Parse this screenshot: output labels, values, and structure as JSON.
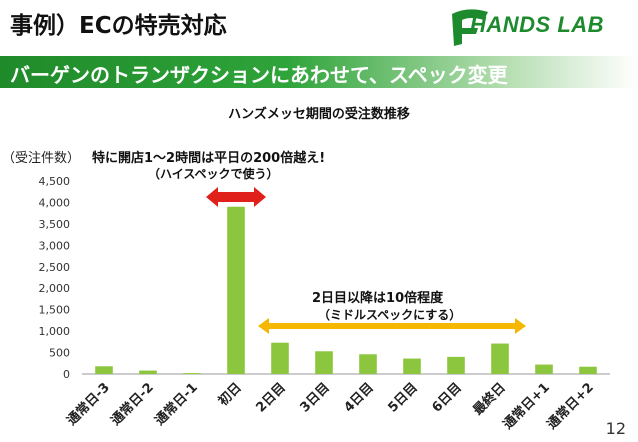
{
  "slide": {
    "title": "事例）ECの特売対応",
    "banner": "バーゲンのトランザクションにあわせて、スペック変更",
    "logo_text": "HANDS LAB",
    "page_number": "12"
  },
  "colors": {
    "bar": "#8cc63f",
    "banner": "#2fa43a",
    "red_arrow": "#e0201b",
    "yellow_arrow": "#f5b700"
  },
  "annotations": {
    "unit": "（受注件数）",
    "peak_line1": "特に開店1～2時間は平日の200倍越え!",
    "peak_line2": "（ハイスペックで使う）",
    "later_line1": "2日目以降は10倍程度",
    "later_line2": "（ミドルスペックにする）"
  },
  "chart_data": {
    "type": "bar",
    "title": "ハンズメッセ期間の受注数推移",
    "categories": [
      "通常日-3",
      "通常日-2",
      "通常日-1",
      "初日",
      "2日目",
      "3日目",
      "4日目",
      "5日目",
      "6日目",
      "最終日",
      "通常日+1",
      "通常日+2"
    ],
    "values": [
      180,
      80,
      20,
      3900,
      730,
      530,
      460,
      360,
      400,
      710,
      220,
      170
    ],
    "ylim": [
      0,
      4500
    ],
    "yticks": [
      0,
      500,
      1000,
      1500,
      2000,
      2500,
      3000,
      3500,
      4000,
      4500
    ],
    "ytick_labels": [
      "0",
      "500",
      "1,000",
      "1,500",
      "2,000",
      "2,500",
      "3,000",
      "3,500",
      "4,000",
      "4,500"
    ],
    "grid": false,
    "legend": "none"
  }
}
